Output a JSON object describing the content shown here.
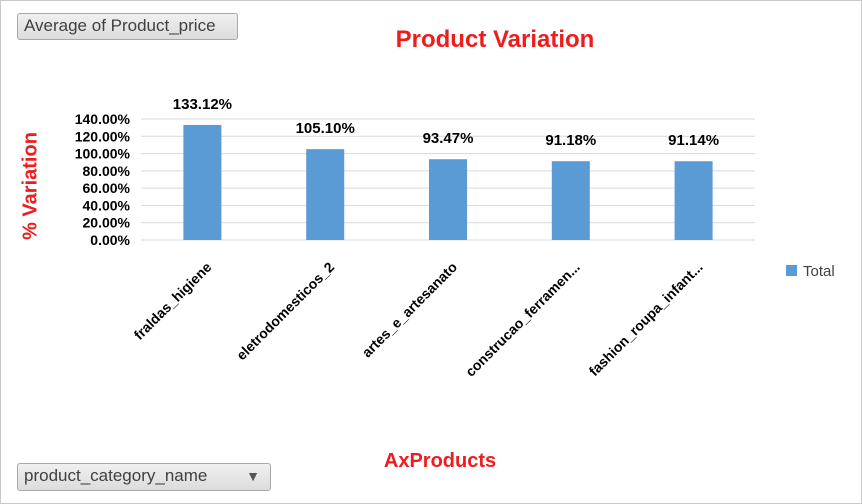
{
  "value_field_button": "Average of Product_price",
  "axis_field_button": "product_category_name",
  "colors": {
    "bar": "#5b9bd5",
    "title": "#ee1c1c",
    "grid": "#d9d9d9"
  },
  "chart_data": {
    "type": "bar",
    "title": "Product Variation",
    "xlabel": "AxProducts",
    "ylabel": "% Variation",
    "categories": [
      "fraldas_higiene",
      "eletrodomesticos_2",
      "artes_e_artesanato",
      "construcao_ferramen...",
      "fashion_roupa_infant..."
    ],
    "series": [
      {
        "name": "Total",
        "values": [
          133.12,
          105.1,
          93.47,
          91.18,
          91.14
        ]
      }
    ],
    "data_labels": [
      "133.12%",
      "105.10%",
      "93.47%",
      "91.18%",
      "91.14%"
    ],
    "y_ticks": [
      "0.00%",
      "20.00%",
      "40.00%",
      "60.00%",
      "80.00%",
      "100.00%",
      "120.00%",
      "140.00%"
    ],
    "ylim": [
      0,
      140
    ],
    "grid": true,
    "legend_position": "right"
  }
}
